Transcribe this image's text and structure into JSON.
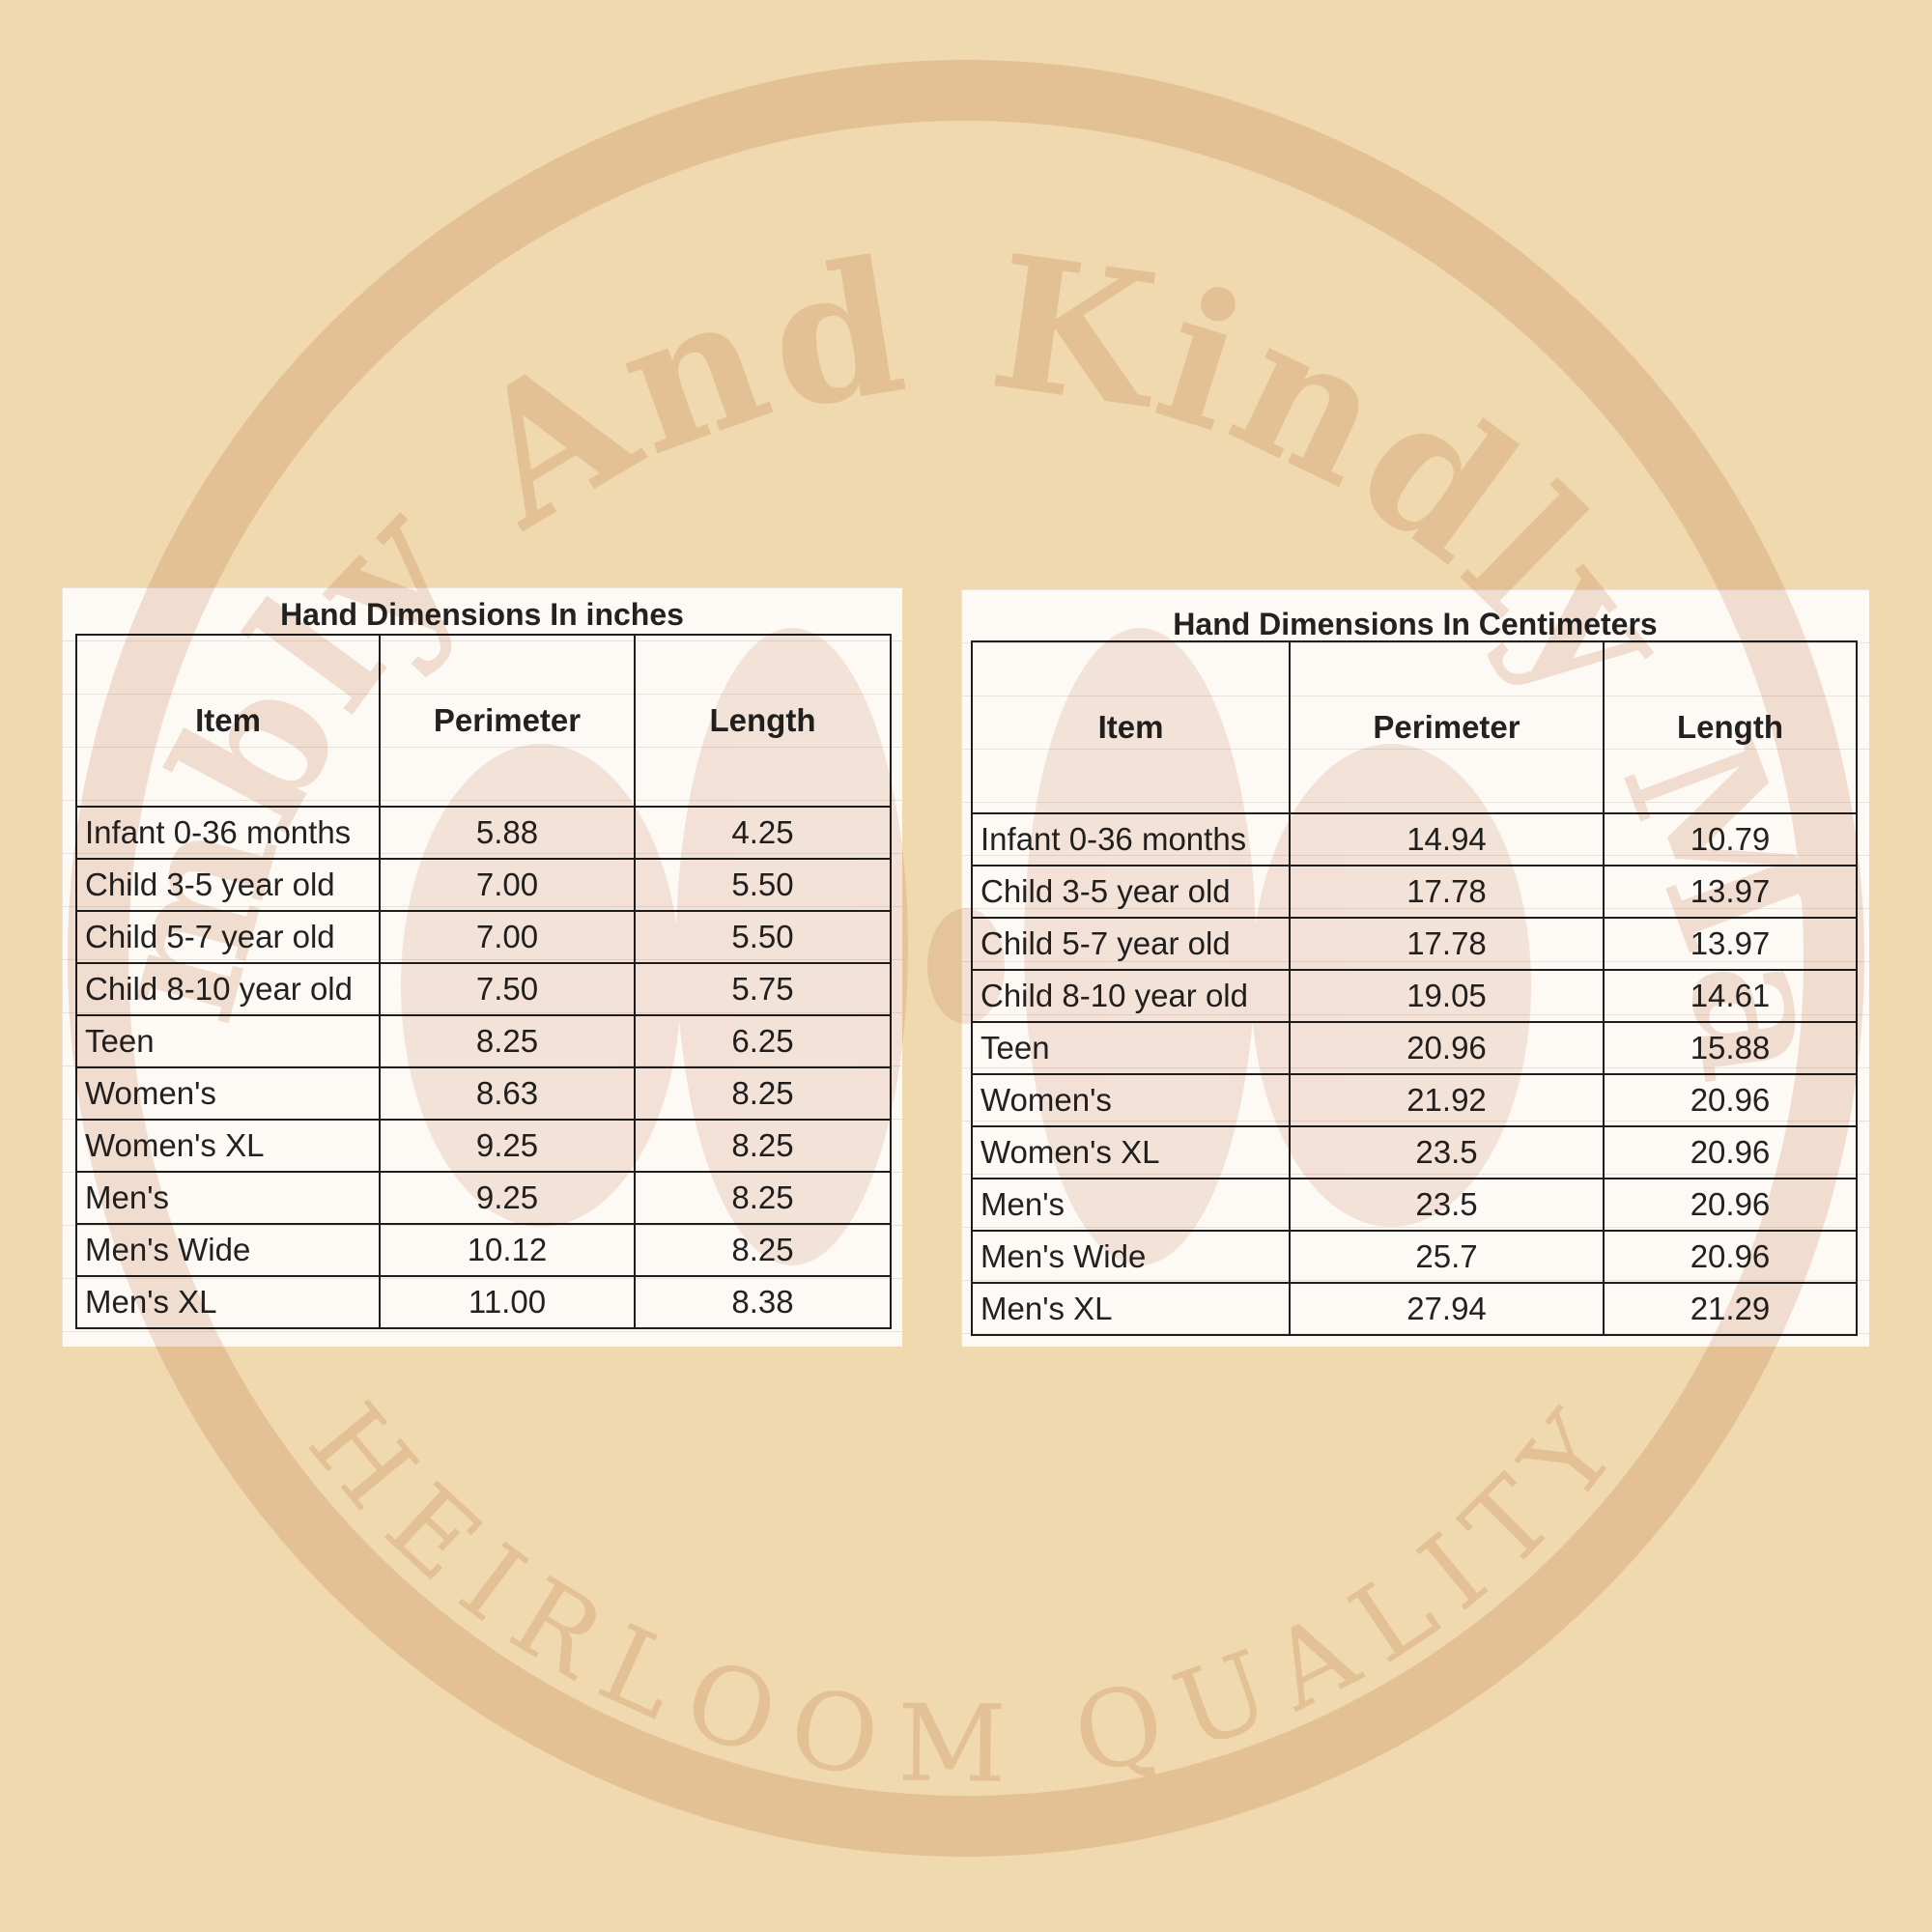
{
  "colors": {
    "background": "#f0d9ae",
    "watermark": "#e5c196",
    "table_bg": "#fdf9f4",
    "border": "#1e1e1e"
  },
  "watermark": {
    "top_text": "Humbly And Kindly Made",
    "bottom_text": "HEIRLOOM QUALITY"
  },
  "tables": [
    {
      "title": "Hand Dimensions In inches",
      "columns": [
        "Item",
        "Perimeter",
        "Length"
      ],
      "rows": [
        [
          "Infant 0-36 months",
          "5.88",
          "4.25"
        ],
        [
          "Child 3-5 year old",
          "7.00",
          "5.50"
        ],
        [
          "Child 5-7 year old",
          "7.00",
          "5.50"
        ],
        [
          "Child 8-10 year old",
          "7.50",
          "5.75"
        ],
        [
          "Teen",
          "8.25",
          "6.25"
        ],
        [
          "Women's",
          "8.63",
          "8.25"
        ],
        [
          "Women's XL",
          "9.25",
          "8.25"
        ],
        [
          "Men's",
          "9.25",
          "8.25"
        ],
        [
          "Men's Wide",
          "10.12",
          "8.25"
        ],
        [
          "Men's XL",
          "11.00",
          "8.38"
        ]
      ]
    },
    {
      "title": "Hand Dimensions In Centimeters",
      "columns": [
        "Item",
        "Perimeter",
        "Length"
      ],
      "rows": [
        [
          "Infant 0-36 months",
          "14.94",
          "10.79"
        ],
        [
          "Child 3-5 year old",
          "17.78",
          "13.97"
        ],
        [
          "Child 5-7 year old",
          "17.78",
          "13.97"
        ],
        [
          "Child 8-10 year old",
          "19.05",
          "14.61"
        ],
        [
          "Teen",
          "20.96",
          "15.88"
        ],
        [
          "Women's",
          "21.92",
          "20.96"
        ],
        [
          "Women's XL",
          "23.5",
          "20.96"
        ],
        [
          "Men's",
          "23.5",
          "20.96"
        ],
        [
          "Men's Wide",
          "25.7",
          "20.96"
        ],
        [
          "Men's XL",
          "27.94",
          "21.29"
        ]
      ]
    }
  ]
}
